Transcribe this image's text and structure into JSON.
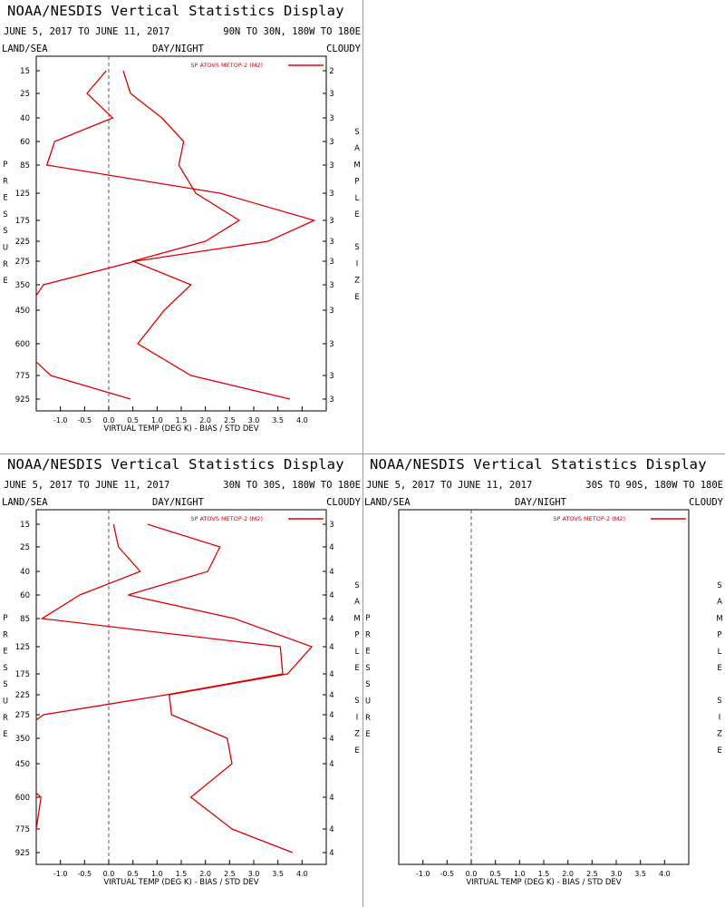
{
  "page": {
    "title": "NOAA/NESDIS Vertical Statistics Display",
    "date_range": "JUNE 5, 2017 TO JUNE 11, 2017",
    "header_left": "LAND/SEA",
    "header_center": "DAY/NIGHT",
    "header_right": "CLOUDY",
    "xlabel": "VIRTUAL TEMP (DEG K) - BIAS / STD DEV",
    "left_label": "PRESSURE",
    "right_label": "SAMPLE SIZE",
    "legend": "SP ATOVS METOP-2 (M2)",
    "line_color": "#dd0000"
  },
  "chart_data": [
    {
      "type": "line",
      "region": "90N TO 30N, 180W TO 180E",
      "title": "NOAA/NESDIS Vertical Statistics Display",
      "xlabel": "VIRTUAL TEMP (DEG K) - BIAS / STD DEV",
      "ylabel": "PRESSURE",
      "y_right_label": "SAMPLE SIZE",
      "xlim": [
        -1.5,
        4.5
      ],
      "xticks": [
        "-1.0",
        "-0.5",
        "0.0",
        "0.5",
        "1.0",
        "1.5",
        "2.0",
        "2.5",
        "3.0",
        "3.5",
        "4.0"
      ],
      "pressure_levels": [
        15,
        25,
        40,
        60,
        85,
        125,
        175,
        225,
        275,
        350,
        450,
        600,
        775,
        925
      ],
      "sample_size": [
        "2",
        "3",
        "3",
        "3",
        "3",
        "3",
        "3",
        "3",
        "3",
        "3",
        "3",
        "3",
        "3",
        "3"
      ],
      "series": [
        {
          "name": "SP ATOVS METOP-2 (M2)",
          "kind": "bias",
          "values": [
            -0.05,
            -0.45,
            0.08,
            -1.12,
            -1.28,
            2.3,
            4.25,
            3.3,
            0.55,
            -1.35,
            -1.7,
            -1.9,
            -1.2,
            0.45
          ]
        },
        {
          "name": "SP ATOVS METOP-2 (M2)",
          "kind": "std_dev",
          "values": [
            0.3,
            0.45,
            1.1,
            1.55,
            1.45,
            1.8,
            2.7,
            2.0,
            0.5,
            1.7,
            1.15,
            0.6,
            1.7,
            3.75
          ]
        }
      ]
    },
    {
      "type": "line",
      "region": "30N TO 30S, 180W TO 180E",
      "title": "NOAA/NESDIS Vertical Statistics Display",
      "xlabel": "VIRTUAL TEMP (DEG K) - BIAS / STD DEV",
      "ylabel": "PRESSURE",
      "y_right_label": "SAMPLE SIZE",
      "xlim": [
        -1.5,
        4.5
      ],
      "xticks": [
        "-1.0",
        "-0.5",
        "0.0",
        "0.5",
        "1.0",
        "1.5",
        "2.0",
        "2.5",
        "3.0",
        "3.5",
        "4.0"
      ],
      "pressure_levels": [
        15,
        25,
        40,
        60,
        85,
        125,
        175,
        225,
        275,
        350,
        450,
        600,
        775,
        925
      ],
      "sample_size": [
        "3",
        "4",
        "4",
        "4",
        "4",
        "4",
        "4",
        "4",
        "4",
        "4",
        "4",
        "4",
        "4",
        "4"
      ],
      "series": [
        {
          "name": "SP ATOVS METOP-2 (M2)",
          "kind": "bias",
          "values": [
            0.1,
            0.2,
            0.65,
            -0.6,
            -1.38,
            3.55,
            3.6,
            1.2,
            -1.35,
            -2.0,
            -2.2,
            -1.4,
            -1.5,
            -2.0
          ]
        },
        {
          "name": "SP ATOVS METOP-2 (M2)",
          "kind": "std_dev",
          "values": [
            0.8,
            2.3,
            2.05,
            0.4,
            2.6,
            4.2,
            3.7,
            1.25,
            1.3,
            2.45,
            2.55,
            1.7,
            2.55,
            3.8
          ]
        }
      ]
    },
    {
      "type": "line",
      "region": "30S TO 90S, 180W TO 180E",
      "title": "NOAA/NESDIS Vertical Statistics Display",
      "xlabel": "VIRTUAL TEMP (DEG K) - BIAS / STD DEV",
      "ylabel": "PRESSURE",
      "y_right_label": "SAMPLE SIZE",
      "xlim": [
        -1.5,
        4.5
      ],
      "xticks": [
        "-1.0",
        "-0.5",
        "0.0",
        "0.5",
        "1.0",
        "1.5",
        "2.0",
        "2.5",
        "3.0",
        "3.5",
        "4.0"
      ],
      "pressure_levels": [],
      "sample_size": [],
      "series": []
    }
  ]
}
